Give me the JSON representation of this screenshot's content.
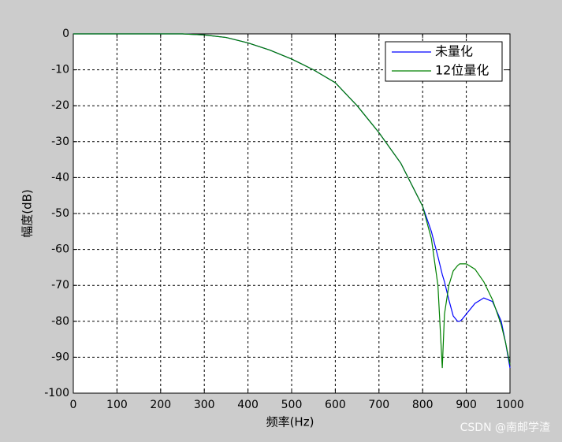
{
  "chart_data": {
    "type": "line",
    "xlabel": "频率(Hz)",
    "ylabel": "幅度(dB)",
    "x": [
      0,
      100,
      200,
      250,
      300,
      350,
      400,
      450,
      500,
      550,
      600,
      650,
      700,
      750,
      800,
      820,
      835,
      845,
      850,
      860,
      870,
      880,
      885,
      890,
      900,
      920,
      940,
      960,
      980,
      990,
      1000
    ],
    "series": [
      {
        "name": "未量化",
        "color": "#0000ff",
        "values": [
          0,
          0,
          0,
          0,
          -0.3,
          -1,
          -2.5,
          -4.5,
          -7,
          -10,
          -13.6,
          -20,
          -27.5,
          -36,
          -48,
          -55,
          -62,
          -67,
          -69,
          -74,
          -78.5,
          -80,
          -80,
          -79.5,
          -78,
          -75,
          -73.5,
          -74.5,
          -80,
          -86,
          -93
        ]
      },
      {
        "name": "12位量化",
        "color": "#008000",
        "values": [
          0,
          0,
          0,
          0,
          -0.3,
          -1,
          -2.5,
          -4.5,
          -7,
          -10,
          -13.6,
          -20,
          -27.5,
          -36,
          -48,
          -57,
          -70,
          -93,
          -78,
          -70,
          -66,
          -64.5,
          -64,
          -64,
          -64,
          -65.5,
          -69,
          -74,
          -81,
          -86,
          -92
        ]
      }
    ],
    "xlim": [
      0,
      1000
    ],
    "xticks": [
      0,
      100,
      200,
      300,
      400,
      500,
      600,
      700,
      800,
      900,
      1000
    ],
    "ylim": [
      -100,
      0
    ],
    "yticks": [
      -100,
      -90,
      -80,
      -70,
      -60,
      -50,
      -40,
      -30,
      -20,
      -10,
      0
    ],
    "grid": true,
    "legend": "upper right"
  },
  "watermark": "CSDN @南邮学渣"
}
